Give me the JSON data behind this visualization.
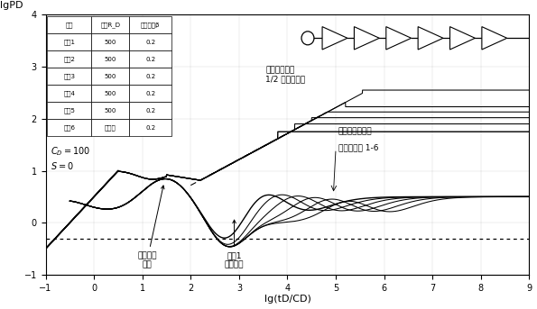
{
  "title_y": "lgPD",
  "title_x": "lg(tD/CD)",
  "xlim": [
    -1,
    9
  ],
  "ylim": [
    -1,
    4
  ],
  "xticks": [
    -1,
    0,
    1,
    2,
    3,
    4,
    5,
    6,
    7,
    8,
    9
  ],
  "yticks": [
    -1,
    0,
    1,
    2,
    3,
    4
  ],
  "CD": 100,
  "S": 0,
  "table_headers": [
    "序号",
    "半径R_D",
    "洞区系数β"
  ],
  "table_rows": [
    [
      "缝創1",
      "500",
      "0.2"
    ],
    [
      "缝創2",
      "500",
      "0.2"
    ],
    [
      "缝創3",
      "500",
      "0.2"
    ],
    [
      "缝創4",
      "500",
      "0.2"
    ],
    [
      "缝創5",
      "500",
      "0.2"
    ],
    [
      "缝創6",
      "无限大",
      "0.2"
    ]
  ],
  "annotation_peak": "早期井储\n驼峰",
  "annotation_boundary": "缝創1\n边界反映",
  "annotation_multi": "多洞串联等效\n1/2 斜率线性流",
  "annotation_supply": "供给增强：下降",
  "annotation_caves": "溶洞数增加 1-6",
  "dotted_y": -0.3,
  "background_color": "#ffffff",
  "line_color": "#000000"
}
